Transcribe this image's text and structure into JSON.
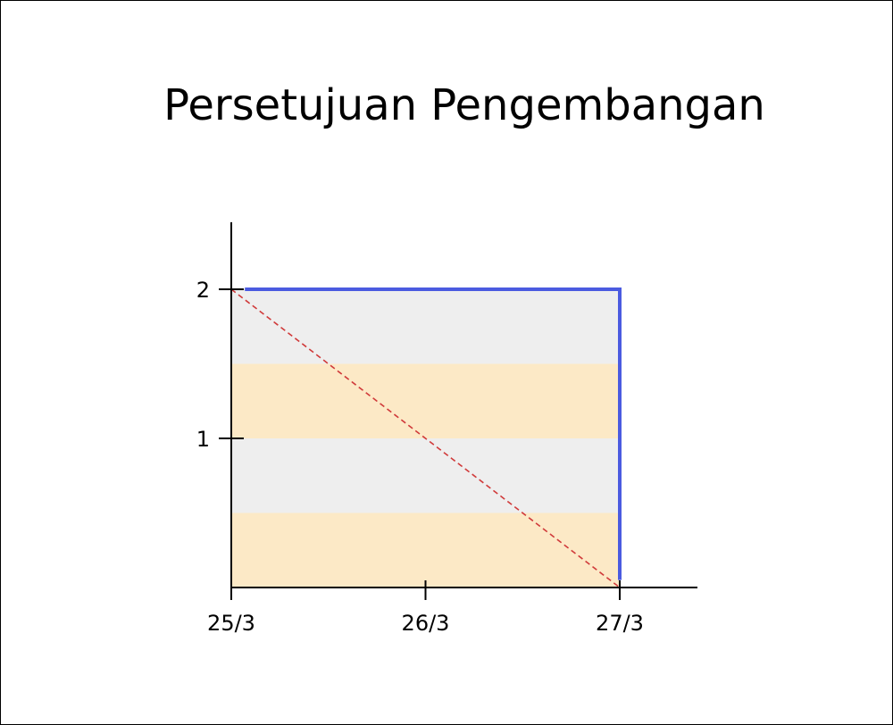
{
  "chart_data": {
    "type": "line",
    "title": "Persetujuan Pengembangan",
    "x_tick_labels": [
      "25/3",
      "26/3",
      "27/3"
    ],
    "y_tick_labels": [
      "1",
      "2"
    ],
    "xlim": [
      0,
      2.4
    ],
    "ylim": [
      0,
      2.45
    ],
    "background_bands": [
      {
        "from": 0,
        "to": 0.5,
        "color": "#FCE9C6"
      },
      {
        "from": 0.5,
        "to": 1.0,
        "color": "#EEEEEE"
      },
      {
        "from": 1.0,
        "to": 1.5,
        "color": "#FCE9C6"
      },
      {
        "from": 1.5,
        "to": 2.0,
        "color": "#EEEEEE"
      }
    ],
    "series": [
      {
        "style": "solid",
        "color": "#4B5BE0",
        "x": [
          0.07,
          2.0,
          2.0
        ],
        "y": [
          2,
          2,
          0.05
        ]
      },
      {
        "style": "dashed",
        "color": "#D03A3A",
        "x": [
          0,
          2.0
        ],
        "y": [
          2,
          0
        ]
      }
    ],
    "grid": false,
    "legend": "none"
  }
}
